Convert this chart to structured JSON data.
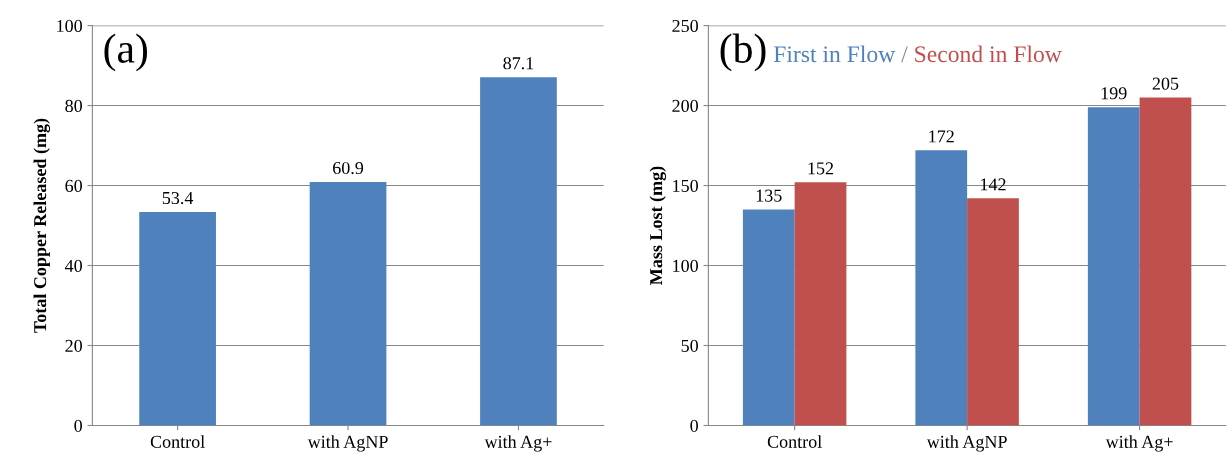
{
  "chart_data": [
    {
      "type": "bar",
      "title": "(a)",
      "ylabel": "Total Copper Released (mg)",
      "categories": [
        "Control",
        "with AgNP",
        "with Ag+"
      ],
      "series": [
        {
          "color": "#4f81bd",
          "values": [
            53.4,
            60.9,
            87.1
          ]
        }
      ],
      "ylim": [
        0,
        100
      ],
      "yticks": [
        0,
        20,
        40,
        60,
        80,
        100
      ],
      "grid": "y",
      "data_labels": true
    },
    {
      "type": "bar",
      "title": "(b)",
      "ylabel": "Mass Lost (mg)",
      "categories": [
        "Control",
        "with AgNP",
        "with Ag+"
      ],
      "series": [
        {
          "name": "First in Flow",
          "color": "#4f81bd",
          "values": [
            135,
            172,
            199
          ]
        },
        {
          "name": "Second in Flow",
          "color": "#c0504d",
          "values": [
            152,
            142,
            205
          ]
        }
      ],
      "annotations": [
        "/"
      ],
      "ylim": [
        0,
        250
      ],
      "yticks": [
        0,
        50,
        100,
        150,
        200,
        250
      ],
      "grid": "y",
      "data_labels": true
    }
  ]
}
